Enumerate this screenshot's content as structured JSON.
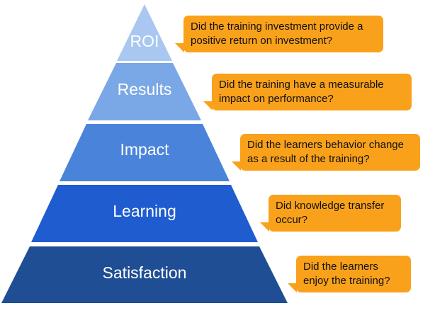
{
  "pyramid": {
    "levels": [
      {
        "label": "ROI",
        "color": "#a9c7f0"
      },
      {
        "label": "Results",
        "color": "#7aa7e6"
      },
      {
        "label": "Impact",
        "color": "#4a84da"
      },
      {
        "label": "Learning",
        "color": "#1e5ccf"
      },
      {
        "label": "Satisfaction",
        "color": "#1f4e94"
      }
    ]
  },
  "callouts": {
    "color": "#f9a11a",
    "roi": "Did the training investment provide a\npositive return on investment?",
    "results": "Did the training have a measurable\nimpact on performance?",
    "impact": "Did the learners behavior change\nas a result of the training?",
    "learning": "Did knowledge transfer\noccur?",
    "satisfaction": "Did the learners\nenjoy the training?"
  }
}
